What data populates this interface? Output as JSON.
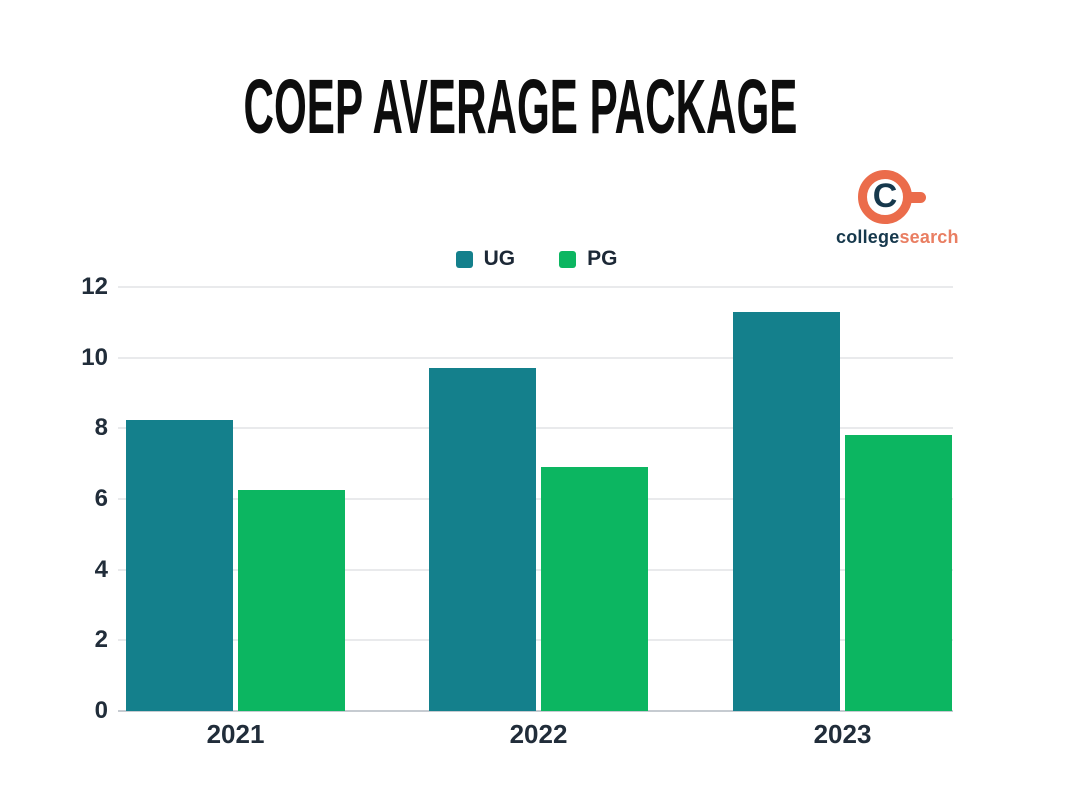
{
  "title": "COEP AVERAGE PACKAGE",
  "logo": {
    "monogram_letter": "C",
    "wordmark_primary": "college",
    "wordmark_secondary": "search",
    "colors": {
      "ring": "#EB6C4B",
      "letter": "#16384C",
      "primary_text": "#16384C",
      "secondary_text": "#E97E62"
    }
  },
  "legend": {
    "items": [
      {
        "label": "UG",
        "color": "#14808C"
      },
      {
        "label": "PG",
        "color": "#0CB661"
      }
    ]
  },
  "chart_data": {
    "type": "bar",
    "title": "COEP AVERAGE PACKAGE",
    "categories": [
      "2021",
      "2022",
      "2023"
    ],
    "series": [
      {
        "name": "UG",
        "color": "#14808C",
        "values": [
          8.25,
          9.7,
          11.3
        ]
      },
      {
        "name": "PG",
        "color": "#0CB661",
        "values": [
          6.25,
          6.9,
          7.8
        ]
      }
    ],
    "xlabel": "",
    "ylabel": "",
    "ylim": [
      0,
      12
    ],
    "yticks": [
      0,
      2,
      4,
      6,
      8,
      10,
      12
    ],
    "grid": true,
    "legend_position": "top-center",
    "tick_color": "#212D3A",
    "grid_color": "#E9EAEC",
    "axis_color": "#C6CBD1"
  }
}
